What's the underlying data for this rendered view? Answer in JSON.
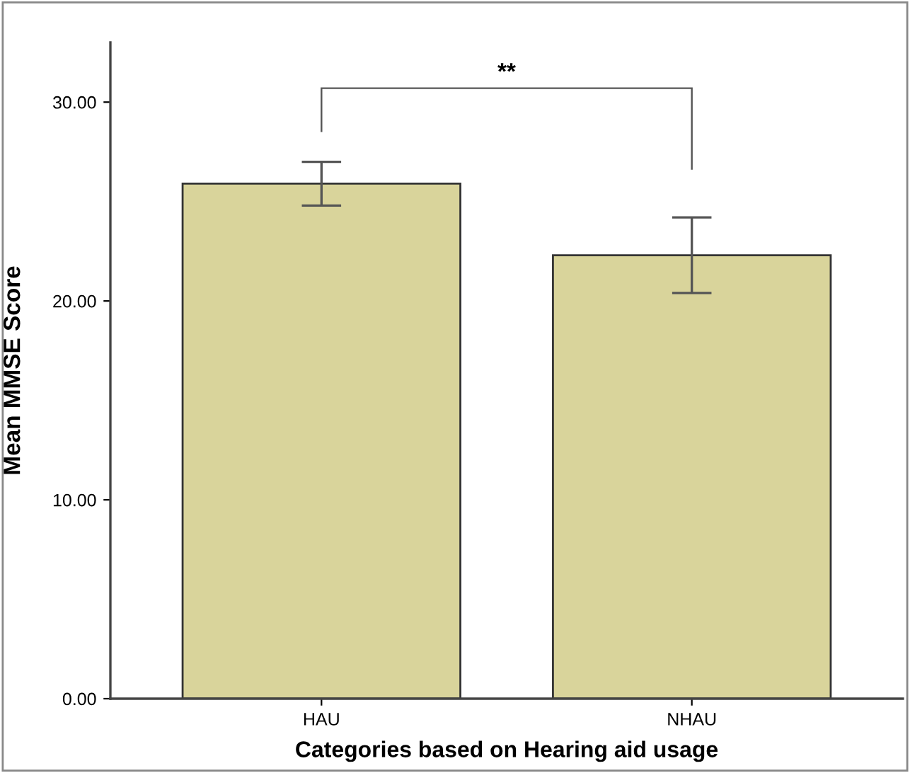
{
  "chart_data": {
    "type": "bar",
    "xlabel": "Categories based on Hearing aid usage",
    "ylabel": "Mean MMSE Score",
    "categories": [
      "HAU",
      "NHAU"
    ],
    "values": [
      25.9,
      22.3
    ],
    "errors": [
      1.1,
      1.9
    ],
    "colors": [
      "#d9d49b",
      "#d9d49b"
    ],
    "ylim": [
      0,
      33
    ],
    "yticks": [
      {
        "value": 0,
        "label": "0.00"
      },
      {
        "value": 10,
        "label": "10.00"
      },
      {
        "value": 20,
        "label": "20.00"
      },
      {
        "value": 30,
        "label": "30.00"
      }
    ],
    "annotations": [
      "**"
    ],
    "grid": false,
    "legend": false
  }
}
